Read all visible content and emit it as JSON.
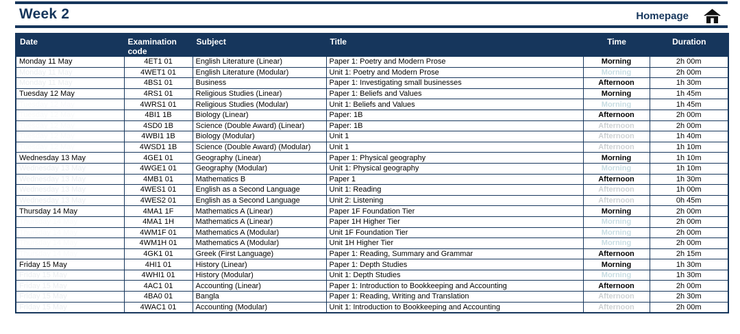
{
  "header": {
    "title": "Week 2",
    "homepage_label": "Homepage"
  },
  "colors": {
    "navy": "#16365C",
    "pale_green_row": "#D7EAE3",
    "morning_bg": "#C2D500",
    "morning_text": "#00617C",
    "afternoon_bg": "#005D6E",
    "afternoon_text": "#FFFFFF",
    "block_border": "#0A1F33"
  },
  "table": {
    "columns": [
      "Date",
      "Examination code",
      "Subject",
      "Title",
      "Time",
      "Duration"
    ],
    "days": [
      {
        "date": "Monday 11 May",
        "shaded": true,
        "rows": [
          {
            "code": "4ET1 01",
            "subject": "English Literature (Linear)",
            "title": "Paper 1: Poetry and Modern Prose",
            "time": "Morning",
            "duration": "2h 00m"
          },
          {
            "code": "4WET1 01",
            "subject": "English Literature (Modular)",
            "title": "Unit 1: Poetry and Modern Prose",
            "time": "Morning",
            "duration": "2h 00m"
          },
          {
            "code": "4BS1 01",
            "subject": "Business",
            "title": "Paper 1: Investigating small businesses",
            "time": "Afternoon",
            "duration": "1h 30m"
          }
        ]
      },
      {
        "date": "Tuesday 12 May",
        "shaded": false,
        "rows": [
          {
            "code": "4RS1 01",
            "subject": "Religious Studies (Linear)",
            "title": "Paper 1: Beliefs and Values",
            "time": "Morning",
            "duration": "1h 45m"
          },
          {
            "code": "4WRS1 01",
            "subject": "Religious Studies (Modular)",
            "title": "Unit 1: Beliefs and Values",
            "time": "Morning",
            "duration": "1h 45m"
          },
          {
            "code": "4BI1 1B",
            "subject": "Biology (Linear)",
            "title": "Paper: 1B",
            "time": "Afternoon",
            "duration": "2h 00m"
          },
          {
            "code": "4SD0 1B",
            "subject": "Science (Double Award) (Linear)",
            "title": "Paper: 1B",
            "time": "Afternoon",
            "duration": "2h 00m"
          },
          {
            "code": "4WBI1 1B",
            "subject": "Biology (Modular)",
            "title": "Unit 1",
            "time": "Afternoon",
            "duration": "1h 40m"
          },
          {
            "code": "4WSD1 1B",
            "subject": "Science (Double Award) (Modular)",
            "title": "Unit 1",
            "time": "Afternoon",
            "duration": "1h 10m"
          }
        ]
      },
      {
        "date": "Wednesday 13 May",
        "shaded": true,
        "rows": [
          {
            "code": "4GE1 01",
            "subject": "Geography (Linear)",
            "title": "Paper 1: Physical geography",
            "time": "Morning",
            "duration": "1h 10m"
          },
          {
            "code": "4WGE1 01",
            "subject": "Geography (Modular)",
            "title": "Unit 1: Physical geography",
            "time": "Morning",
            "duration": "1h 10m"
          },
          {
            "code": "4MB1 01",
            "subject": "Mathematics B",
            "title": "Paper 1",
            "time": "Afternoon",
            "duration": "1h 30m"
          },
          {
            "code": "4WES1 01",
            "subject": "English as a Second Language",
            "title": "Unit 1: Reading",
            "time": "Afternoon",
            "duration": "1h 00m"
          },
          {
            "code": "4WES2 01",
            "subject": "English as a Second Language",
            "title": "Unit 2: Listening",
            "time": "Afternoon",
            "duration": "0h 45m"
          }
        ]
      },
      {
        "date": "Thursday 14 May",
        "shaded": false,
        "rows": [
          {
            "code": "4MA1 1F",
            "subject": "Mathematics A (Linear)",
            "title": "Paper 1F Foundation Tier",
            "time": "Morning",
            "duration": "2h 00m"
          },
          {
            "code": "4MA1 1H",
            "subject": "Mathematics A (Linear)",
            "title": "Paper 1H Higher Tier",
            "time": "Morning",
            "duration": "2h 00m"
          },
          {
            "code": "4WM1F 01",
            "subject": "Mathematics A (Modular)",
            "title": "Unit 1F Foundation Tier",
            "time": "Morning",
            "duration": "2h 00m"
          },
          {
            "code": "4WM1H 01",
            "subject": "Mathematics A (Modular)",
            "title": "Unit 1H Higher Tier",
            "time": "Morning",
            "duration": "2h 00m"
          },
          {
            "code": "4GK1 01",
            "subject": "Greek (First Language)",
            "title": "Paper 1: Reading, Summary and Grammar",
            "time": "Afternoon",
            "duration": "2h 15m"
          }
        ]
      },
      {
        "date": "Friday 15 May",
        "shaded": true,
        "rows": [
          {
            "code": "4HI1 01",
            "subject": "History (Linear)",
            "title": "Paper 1: Depth Studies",
            "time": "Morning",
            "duration": "1h 30m"
          },
          {
            "code": "4WHI1 01",
            "subject": "History (Modular)",
            "title": "Unit 1: Depth Studies",
            "time": "Morning",
            "duration": "1h 30m"
          },
          {
            "code": "4AC1 01",
            "subject": "Accounting (Linear)",
            "title": "Paper 1: Introduction to Bookkeeping and Accounting",
            "time": "Afternoon",
            "duration": "2h 00m"
          },
          {
            "code": "4BA0 01",
            "subject": "Bangla",
            "title": "Paper 1: Reading, Writing and Translation",
            "time": "Afternoon",
            "duration": "2h 30m"
          },
          {
            "code": "4WAC1 01",
            "subject": "Accounting (Modular)",
            "title": "Unit 1: Introduction to Bookkeeping and Accounting",
            "time": "Afternoon",
            "duration": "2h 00m"
          }
        ]
      }
    ]
  }
}
